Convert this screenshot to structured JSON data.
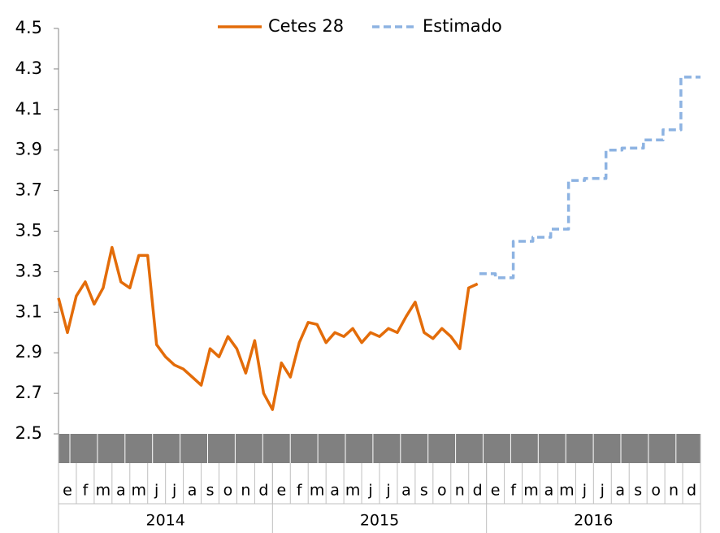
{
  "chart_data": {
    "type": "line",
    "categories": [
      "e",
      "f",
      "m",
      "a",
      "m",
      "j",
      "j",
      "a",
      "s",
      "o",
      "n",
      "d",
      "e",
      "f",
      "m",
      "a",
      "m",
      "j",
      "j",
      "a",
      "s",
      "o",
      "n",
      "d",
      "e",
      "f",
      "m",
      "a",
      "m",
      "j",
      "j",
      "a",
      "s",
      "o",
      "n",
      "d"
    ],
    "years": [
      "2014",
      "2015",
      "2016"
    ],
    "xlim": [
      0,
      36
    ],
    "ylim": [
      2.5,
      4.5
    ],
    "yticks": [
      2.5,
      2.7,
      2.9,
      3.1,
      3.3,
      3.5,
      3.7,
      3.9,
      4.1,
      4.3,
      4.5
    ],
    "legend": "top",
    "series": [
      {
        "name": "Cetes 28",
        "color": "#e36c09",
        "dash": false,
        "x": [
          0,
          0.5,
          1,
          1.5,
          2,
          2.5,
          3,
          3.5,
          4,
          4.5,
          5,
          5.5,
          6,
          6.5,
          7,
          7.5,
          8,
          8.5,
          9,
          9.5,
          10,
          10.5,
          11,
          11.5,
          12,
          12.5,
          13,
          13.5,
          14,
          14.5,
          15,
          15.5,
          16,
          16.5,
          17,
          17.5,
          18,
          18.5,
          19,
          19.5,
          20,
          20.5,
          21,
          21.5,
          22,
          22.5,
          23,
          23.5
        ],
        "values": [
          3.17,
          3.0,
          3.18,
          3.25,
          3.14,
          3.22,
          3.42,
          3.25,
          3.22,
          3.38,
          3.38,
          2.94,
          2.88,
          2.84,
          2.82,
          2.78,
          2.74,
          2.92,
          2.88,
          2.98,
          2.92,
          2.8,
          2.96,
          2.7,
          2.62,
          2.85,
          2.78,
          2.95,
          3.05,
          3.04,
          2.95,
          3.0,
          2.98,
          3.02,
          2.95,
          3.0,
          2.98,
          3.02,
          3.0,
          3.08,
          3.15,
          3.0,
          2.97,
          3.02,
          2.98,
          2.92,
          3.22,
          3.24
        ]
      },
      {
        "name": "Estimado",
        "color": "#8db3e2",
        "dash": true,
        "x": [
          23.6,
          24.5,
          24.5,
          25.5,
          25.5,
          26.6,
          26.6,
          27.6,
          27.6,
          28.6,
          28.6,
          29.5,
          29.5,
          30.7,
          30.7,
          31.6,
          31.6,
          32.8,
          32.8,
          33.9,
          33.9,
          34.9,
          34.9,
          36
        ],
        "values": [
          3.29,
          3.29,
          3.27,
          3.27,
          3.45,
          3.45,
          3.47,
          3.47,
          3.51,
          3.51,
          3.75,
          3.75,
          3.76,
          3.76,
          3.9,
          3.9,
          3.91,
          3.91,
          3.95,
          3.95,
          4.0,
          4.0,
          4.26,
          4.26
        ]
      }
    ]
  }
}
